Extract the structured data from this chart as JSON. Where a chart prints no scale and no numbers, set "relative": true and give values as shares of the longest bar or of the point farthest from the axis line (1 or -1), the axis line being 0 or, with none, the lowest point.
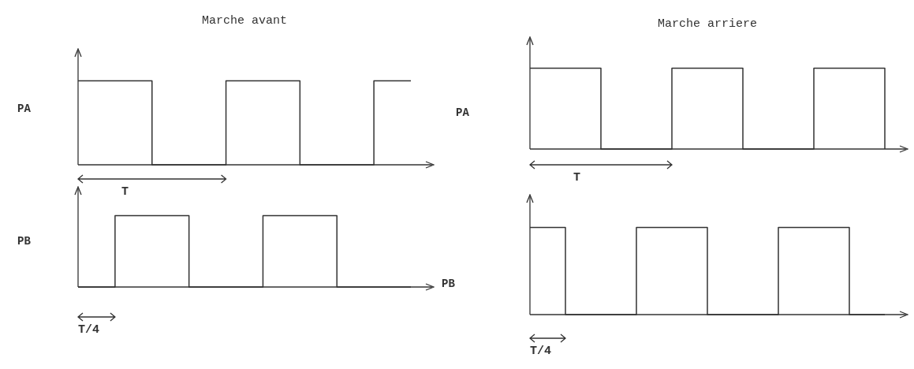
{
  "chart_data": [
    {
      "type": "step",
      "title": "Marche avant",
      "ylabel": "PA",
      "categories": [
        null,
        null,
        null,
        null,
        null,
        null,
        null,
        null,
        null,
        null
      ],
      "values": [
        1,
        1,
        0,
        0,
        1,
        1,
        0,
        0,
        1,
        1
      ],
      "color": "#333333",
      "relative": true,
      "tick_labels": false,
      "grid": false,
      "legend": false,
      "annotations": [
        "T"
      ]
    },
    {
      "type": "step",
      "ylabel": "PB",
      "categories": [
        null,
        null,
        null,
        null,
        null,
        null,
        null,
        null,
        null,
        null
      ],
      "values": [
        0,
        1,
        1,
        0,
        0,
        1,
        1,
        0,
        0,
        0
      ],
      "color": "#333333",
      "relative": true,
      "tick_labels": false,
      "grid": false,
      "legend": false,
      "annotations": [
        "T/4"
      ]
    },
    {
      "type": "step",
      "title": "Marche arriere",
      "ylabel": "PA",
      "categories": [
        null,
        null,
        null,
        null,
        null,
        null,
        null,
        null,
        null,
        null,
        null
      ],
      "values": [
        1,
        1,
        0,
        0,
        1,
        1,
        0,
        0,
        1,
        1,
        0
      ],
      "color": "#333333",
      "relative": true,
      "tick_labels": false,
      "grid": false,
      "legend": false,
      "annotations": [
        "T"
      ]
    },
    {
      "type": "step",
      "ylabel": "PB",
      "categories": [
        null,
        null,
        null,
        null,
        null,
        null,
        null,
        null,
        null,
        null,
        null
      ],
      "values": [
        1,
        0,
        0,
        1,
        1,
        0,
        0,
        1,
        1,
        0,
        0
      ],
      "color": "#333333",
      "relative": true,
      "tick_labels": false,
      "grid": false,
      "legend": false,
      "annotations": [
        "T/4"
      ]
    }
  ]
}
